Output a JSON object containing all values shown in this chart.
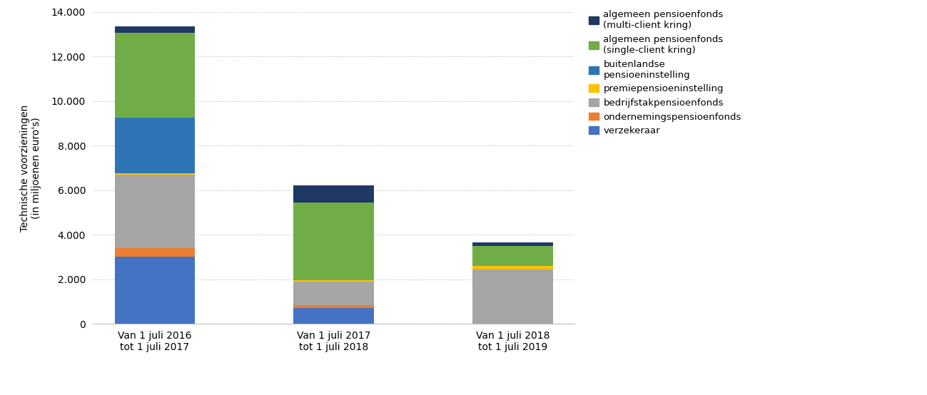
{
  "categories": [
    "Van 1 juli 2016\ntot 1 juli 2017",
    "Van 1 juli 2017\ntot 1 juli 2018",
    "Van 1 juli 2018\ntot 1 juli 2019"
  ],
  "series": [
    {
      "label": "verzekeraar",
      "color": "#4472C4",
      "values": [
        3000,
        700,
        0
      ]
    },
    {
      "label": "ondernemingspensioenfonds",
      "color": "#ED7D31",
      "values": [
        400,
        150,
        0
      ]
    },
    {
      "label": "bedrijfstakpensioenfonds",
      "color": "#A5A5A5",
      "values": [
        3300,
        1050,
        2450
      ]
    },
    {
      "label": "premiepensioeninstelling",
      "color": "#FFC000",
      "values": [
        50,
        50,
        150
      ]
    },
    {
      "label": "buitenlandse\npensioeninstelling",
      "color": "#2E75B6",
      "values": [
        2500,
        0,
        0
      ]
    },
    {
      "label": "algemeen pensioenfonds\n(single-client kring)",
      "color": "#70AD47",
      "values": [
        3800,
        3500,
        900
      ]
    },
    {
      "label": "algemeen pensioenfonds\n(multi-client kring)",
      "color": "#1F3864",
      "values": [
        300,
        750,
        150
      ]
    }
  ],
  "ylabel": "Technische voorzieningen\n(in miljoenen euro's)",
  "ylim": [
    0,
    14000
  ],
  "yticks": [
    0,
    2000,
    4000,
    6000,
    8000,
    10000,
    12000,
    14000
  ],
  "ytick_labels": [
    "0",
    "2.000",
    "4.000",
    "6.000",
    "8.000",
    "10.000",
    "12.000",
    "14.000"
  ],
  "background_color": "#FFFFFF",
  "grid_color": "#BFBFBF",
  "bar_width": 0.45,
  "figsize": [
    12.99,
    5.54
  ],
  "dpi": 100
}
